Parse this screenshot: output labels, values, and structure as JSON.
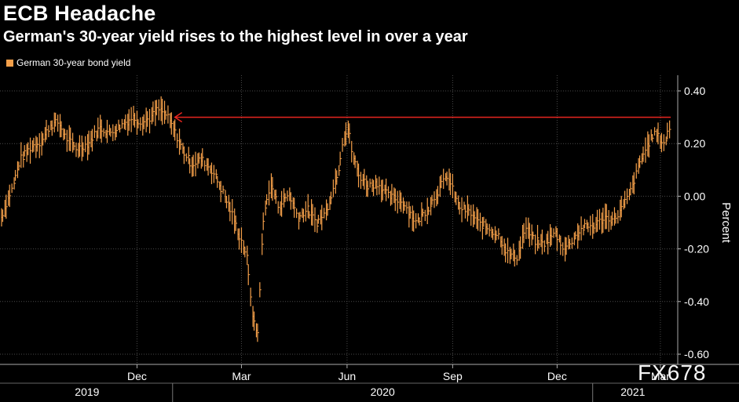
{
  "header": {
    "title": "ECB Headache",
    "subtitle": "German's 30-year yield rises to the highest level in over a year"
  },
  "watermark": "FX678",
  "colors": {
    "background": "#000000",
    "series": "#f5a04a",
    "arrow": "#e8261f",
    "grid": "#4a4a4a",
    "text": "#ffffff"
  },
  "chart_data": {
    "type": "line",
    "style": "ohlc-bars",
    "title": "",
    "xlabel": "",
    "ylabel": "Percent",
    "ylim": [
      -0.6,
      0.4
    ],
    "yticks": [
      0.4,
      0.2,
      0.0,
      -0.2,
      -0.4,
      -0.6
    ],
    "ytick_labels": [
      "0.40",
      "0.20",
      "0.00",
      "-0.20",
      "-0.40",
      "-0.60"
    ],
    "y_axis_side": "right",
    "grid": true,
    "legend_position": "top-left",
    "xlim": [
      "2019-08-05",
      "2021-03-12"
    ],
    "x_month_ticks": [
      {
        "date": "2019-12-01",
        "label": "Dec"
      },
      {
        "date": "2020-03-01",
        "label": "Mar"
      },
      {
        "date": "2020-06-01",
        "label": "Jun"
      },
      {
        "date": "2020-09-01",
        "label": "Sep"
      },
      {
        "date": "2020-12-01",
        "label": "Dec"
      },
      {
        "date": "2021-03-01",
        "label": "Mar"
      }
    ],
    "x_year_labels": [
      {
        "label": "2019",
        "from": "2019-08-05",
        "to": "2020-01-01"
      },
      {
        "label": "2020",
        "from": "2020-01-01",
        "to": "2021-01-01"
      },
      {
        "label": "2021",
        "from": "2021-01-01",
        "to": "2021-03-12"
      }
    ],
    "series": [
      {
        "name": "German 30-year bond yield",
        "x": [
          "2019-08-05",
          "2019-08-15",
          "2019-08-22",
          "2019-09-01",
          "2019-09-10",
          "2019-09-17",
          "2019-09-24",
          "2019-10-01",
          "2019-10-10",
          "2019-10-20",
          "2019-10-30",
          "2019-11-08",
          "2019-11-18",
          "2019-11-28",
          "2019-12-06",
          "2019-12-14",
          "2019-12-20",
          "2019-12-27",
          "2020-01-03",
          "2020-01-10",
          "2020-01-18",
          "2020-01-27",
          "2020-02-05",
          "2020-02-14",
          "2020-02-21",
          "2020-02-28",
          "2020-03-06",
          "2020-03-09",
          "2020-03-12",
          "2020-03-16",
          "2020-03-18",
          "2020-03-20",
          "2020-03-24",
          "2020-03-28",
          "2020-04-03",
          "2020-04-12",
          "2020-04-20",
          "2020-04-28",
          "2020-05-06",
          "2020-05-14",
          "2020-05-20",
          "2020-05-26",
          "2020-05-29",
          "2020-06-03",
          "2020-06-06",
          "2020-06-12",
          "2020-06-20",
          "2020-06-28",
          "2020-07-08",
          "2020-07-20",
          "2020-08-01",
          "2020-08-12",
          "2020-08-20",
          "2020-08-28",
          "2020-09-07",
          "2020-09-16",
          "2020-09-24",
          "2020-10-02",
          "2020-10-12",
          "2020-10-20",
          "2020-10-28",
          "2020-11-04",
          "2020-11-12",
          "2020-11-20",
          "2020-11-30",
          "2020-12-08",
          "2020-12-16",
          "2020-12-24",
          "2021-01-04",
          "2021-01-12",
          "2021-01-20",
          "2021-01-28",
          "2021-02-04",
          "2021-02-12",
          "2021-02-18",
          "2021-02-24",
          "2021-03-01",
          "2021-03-05",
          "2021-03-10"
        ],
        "y": [
          -0.08,
          0.03,
          0.14,
          0.19,
          0.21,
          0.27,
          0.28,
          0.22,
          0.18,
          0.2,
          0.26,
          0.24,
          0.27,
          0.3,
          0.28,
          0.3,
          0.33,
          0.31,
          0.25,
          0.18,
          0.12,
          0.14,
          0.1,
          0.02,
          -0.05,
          -0.14,
          -0.22,
          -0.35,
          -0.48,
          -0.52,
          -0.3,
          -0.12,
          0.0,
          0.04,
          -0.04,
          0.01,
          -0.08,
          -0.05,
          -0.1,
          -0.06,
          0.02,
          0.12,
          0.22,
          0.26,
          0.16,
          0.08,
          0.04,
          0.05,
          0.0,
          -0.02,
          -0.1,
          -0.04,
          0.02,
          0.08,
          -0.04,
          -0.06,
          -0.1,
          -0.12,
          -0.15,
          -0.22,
          -0.23,
          -0.12,
          -0.17,
          -0.18,
          -0.14,
          -0.2,
          -0.16,
          -0.12,
          -0.11,
          -0.08,
          -0.09,
          -0.04,
          0.02,
          0.13,
          0.19,
          0.24,
          0.22,
          0.2,
          0.27
        ]
      }
    ],
    "annotations": [
      {
        "type": "arrow",
        "from": {
          "x": "2021-03-10",
          "y": 0.3
        },
        "to": {
          "x": "2020-01-03",
          "y": 0.3
        }
      }
    ]
  }
}
